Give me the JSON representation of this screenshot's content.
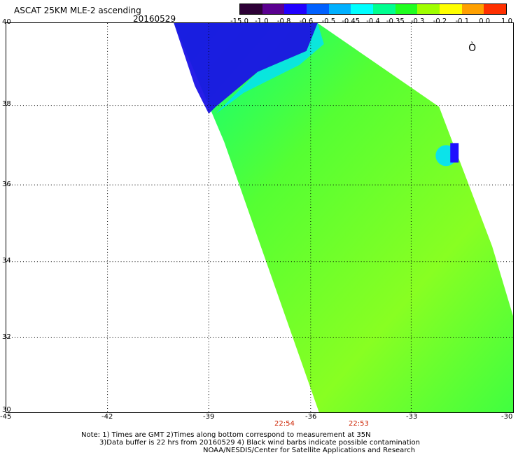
{
  "header": {
    "title": "ASCAT 25KM MLE-2 ascending",
    "date": "20160529"
  },
  "colorbar": {
    "labels": [
      "-15.0",
      "-1.0",
      "-0.8",
      "-0.6",
      "-0.5",
      "-0.45",
      "-0.4",
      "-0.35",
      "-0.3",
      "-0.2",
      "-0.1",
      "0.0",
      "1.0"
    ],
    "colors": [
      "#2d0036",
      "#5a0090",
      "#2000ff",
      "#0060ff",
      "#00b0ff",
      "#00ffff",
      "#00ff90",
      "#20ff20",
      "#a0ff00",
      "#ffff00",
      "#ffa000",
      "#ff3000"
    ]
  },
  "map": {
    "y_labels": [
      "40",
      "38",
      "36",
      "34",
      "32",
      "30"
    ],
    "x_labels": [
      "-45",
      "-42",
      "-39",
      "-36",
      "-33",
      "-30"
    ],
    "time_labels": [
      "22:54",
      "22:53"
    ]
  },
  "notes": {
    "line1": "Note: 1) Times are GMT 2)Times along bottom correspond to measurement at 35N",
    "line2": "3)Data buffer is 22 hrs from 20160529 4) Black wind barbs indicate possible contamination",
    "line3": "NOAA/NESDIS/Center for Satellite Applications and Research"
  }
}
